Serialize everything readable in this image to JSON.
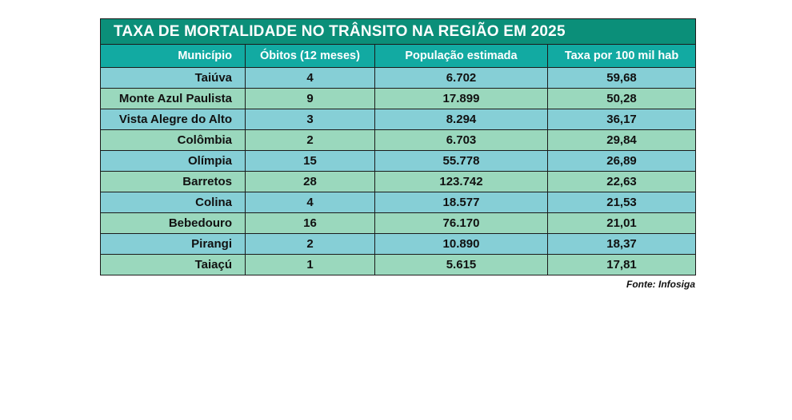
{
  "title": "TAXA DE MORTALIDADE NO TRÂNSITO NA REGIÃO  EM 2025",
  "columns": [
    "Município",
    "Óbitos (12 meses)",
    "População estimada",
    "Taxa por 100 mil hab"
  ],
  "rows": [
    [
      "Taiúva",
      "4",
      "6.702",
      "59,68"
    ],
    [
      "Monte Azul Paulista",
      "9",
      "17.899",
      "50,28"
    ],
    [
      "Vista Alegre do Alto",
      "3",
      "8.294",
      "36,17"
    ],
    [
      "Colômbia",
      "2",
      "6.703",
      "29,84"
    ],
    [
      "Olímpia",
      "15",
      "55.778",
      "26,89"
    ],
    [
      "Barretos",
      "28",
      "123.742",
      "22,63"
    ],
    [
      "Colina",
      "4",
      "18.577",
      "21,53"
    ],
    [
      "Bebedouro",
      "16",
      "76.170",
      "21,01"
    ],
    [
      "Pirangi",
      "2",
      "10.890",
      "18,37"
    ],
    [
      "Taiaçú",
      "1",
      "5.615",
      "17,81"
    ]
  ],
  "source": "Fonte: Infosiga",
  "colors": {
    "title_bg": "#0b8f79",
    "header_bg": "#12aaa2",
    "row_odd": "#86cfd6",
    "row_even": "#9ad8bd"
  }
}
